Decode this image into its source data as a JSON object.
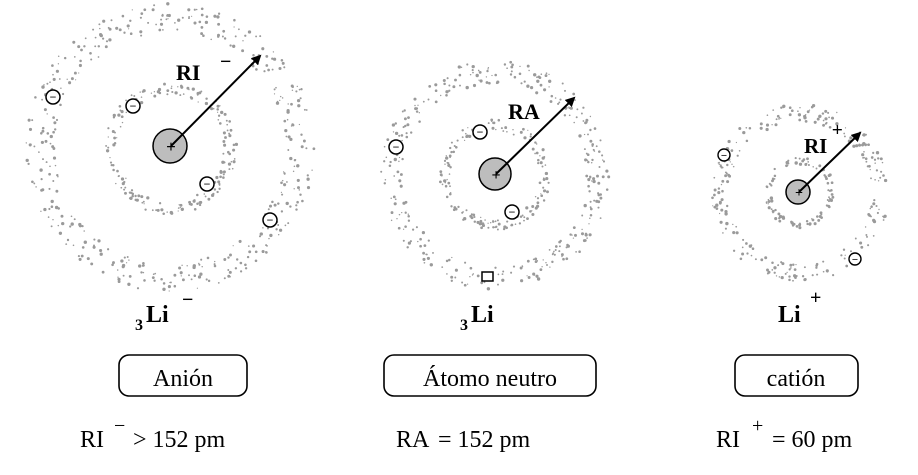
{
  "panels": [
    {
      "radius_label": "RI",
      "radius_sign": "−",
      "symbol_pre": "3",
      "symbol": "Li",
      "symbol_charge": "−",
      "box_label": "Anión",
      "relation_symbol": "RI",
      "relation_sign": "−",
      "relation_rest": "> 152 pm"
    },
    {
      "radius_label": "RA",
      "radius_sign": "",
      "symbol_pre": "3",
      "symbol": "Li",
      "symbol_charge": "",
      "box_label": "Átomo neutro",
      "relation_symbol": "RA",
      "relation_sign": "",
      "relation_rest": "= 152 pm"
    },
    {
      "radius_label": "RI",
      "radius_sign": "+",
      "symbol_pre": "",
      "symbol": "Li",
      "symbol_charge": "+",
      "box_label": "catión",
      "relation_symbol": "RI",
      "relation_sign": "+",
      "relation_rest": "= 60 pm"
    }
  ],
  "glyphs": {
    "nucleus": "+",
    "electron": "−"
  },
  "colors": {
    "ink": "#000000",
    "cloud": "#9a9a9a",
    "nucleus_fill": "#bdbdbd"
  }
}
